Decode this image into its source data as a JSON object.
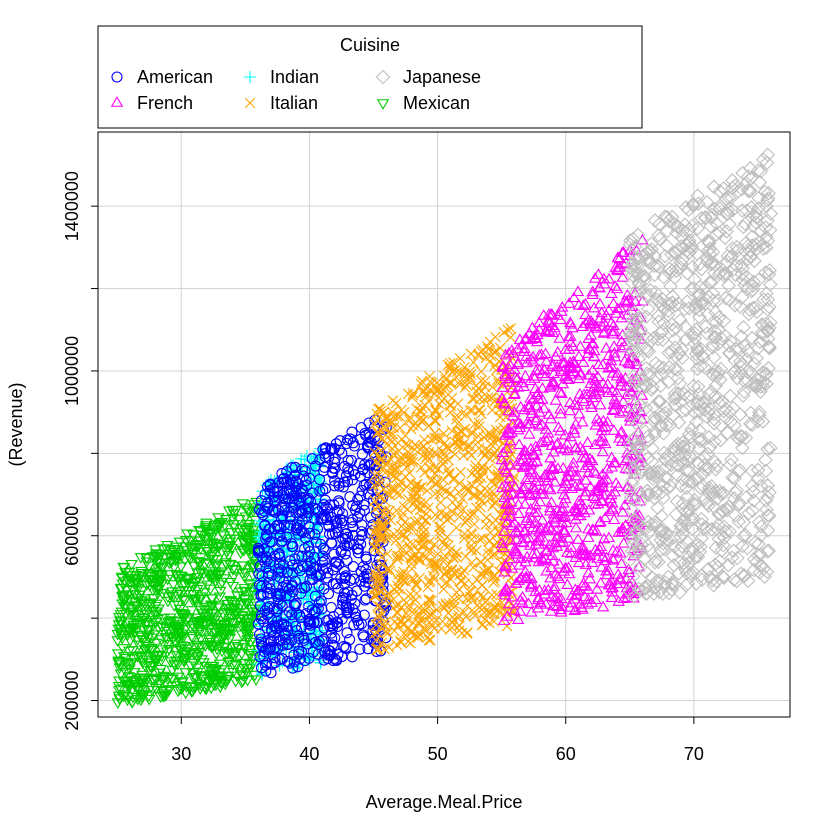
{
  "chart_data": {
    "type": "scatter",
    "title": "",
    "xlabel": "Average.Meal.Price",
    "ylabel": "(Revenue)",
    "xlim": [
      23.5,
      77.5
    ],
    "ylim": [
      160000,
      1580000
    ],
    "x_ticks": [
      30,
      40,
      50,
      60,
      70
    ],
    "y_ticks": [
      200000,
      400000,
      600000,
      800000,
      1000000,
      1200000,
      1400000
    ],
    "y_tick_labels": [
      "200000",
      "",
      "600000",
      "",
      "1000000",
      "",
      "1400000"
    ],
    "grid": true,
    "legend": {
      "title": "Cuisine",
      "placement": "top"
    },
    "series": [
      {
        "name": "American",
        "color": "#0000FF",
        "marker": "circle",
        "x_range": [
          36,
          46
        ],
        "revenue_band": {
          "low_at_start": 260000,
          "low_at_end": 320000,
          "high_at_start": 720000,
          "high_at_end": 900000
        },
        "approx_points": 700
      },
      {
        "name": "French",
        "color": "#FF00FF",
        "marker": "triangle-up",
        "x_range": [
          55,
          66
        ],
        "revenue_band": {
          "low_at_start": 380000,
          "low_at_end": 440000,
          "high_at_start": 1050000,
          "high_at_end": 1330000
        },
        "approx_points": 900
      },
      {
        "name": "Indian",
        "color": "#00FFFF",
        "marker": "plus",
        "x_range": [
          36,
          41
        ],
        "revenue_band": {
          "low_at_start": 260000,
          "low_at_end": 290000,
          "high_at_start": 720000,
          "high_at_end": 820000
        },
        "approx_points": 500
      },
      {
        "name": "Italian",
        "color": "#FFA500",
        "marker": "cross",
        "x_range": [
          45,
          56
        ],
        "revenue_band": {
          "low_at_start": 320000,
          "low_at_end": 380000,
          "high_at_start": 900000,
          "high_at_end": 1120000
        },
        "approx_points": 900
      },
      {
        "name": "Japanese",
        "color": "#BEBEBE",
        "marker": "diamond",
        "x_range": [
          65,
          76
        ],
        "revenue_band": {
          "low_at_start": 440000,
          "low_at_end": 500000,
          "high_at_start": 1330000,
          "high_at_end": 1530000
        },
        "approx_points": 900
      },
      {
        "name": "Mexican",
        "color": "#00CD00",
        "marker": "triangle-down",
        "x_range": [
          25,
          36
        ],
        "revenue_band": {
          "low_at_start": 190000,
          "low_at_end": 250000,
          "high_at_start": 520000,
          "high_at_end": 700000
        },
        "approx_points": 900
      }
    ]
  }
}
